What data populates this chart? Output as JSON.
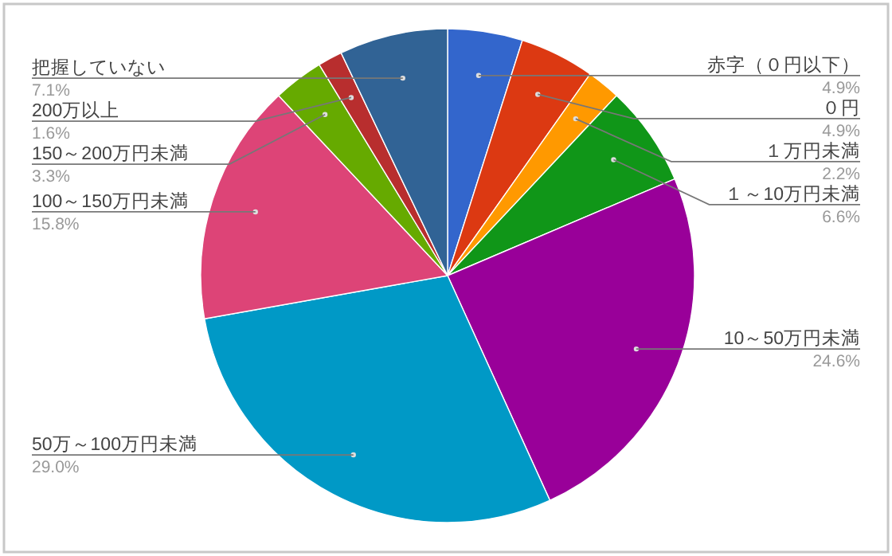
{
  "chart_data": {
    "type": "pie",
    "categories": [
      "赤字（０円以下）",
      "０円",
      "１万円未満",
      "１～10万円未満",
      "10～50万円未満",
      "50万～100万円未満",
      "100～150万円未満",
      "150～200万円未満",
      "200万以上",
      "把握していない"
    ],
    "values": [
      4.9,
      4.9,
      2.2,
      6.6,
      24.6,
      29.0,
      15.8,
      3.3,
      1.6,
      7.1
    ],
    "colors": [
      "#3366cc",
      "#dc3912",
      "#ff9900",
      "#109618",
      "#990099",
      "#0099c6",
      "#dd4477",
      "#66aa00",
      "#b82e2e",
      "#316395"
    ],
    "value_labels": [
      "4.9%",
      "4.9%",
      "2.2%",
      "6.6%",
      "24.6%",
      "29.0%",
      "15.8%",
      "3.3%",
      "1.6%",
      "7.1%"
    ]
  }
}
